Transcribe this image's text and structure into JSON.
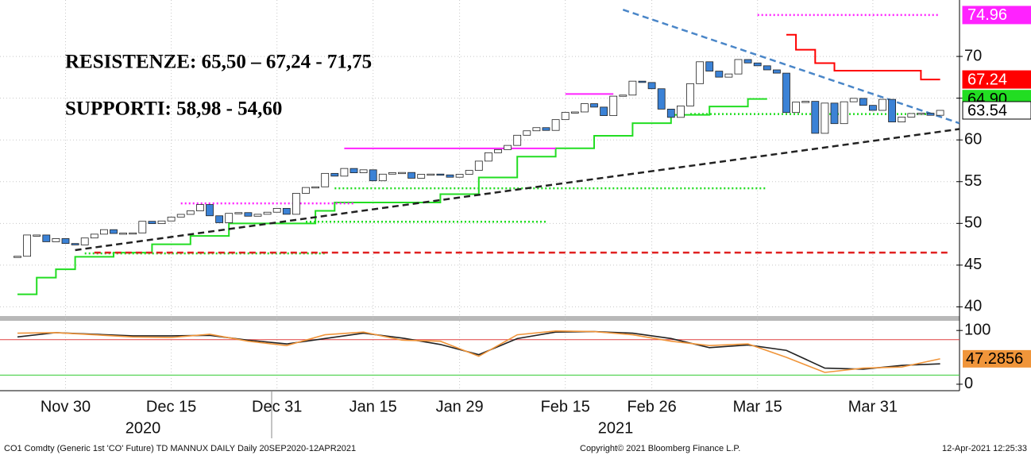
{
  "chart_data": [
    {
      "type": "candlestick",
      "annotations": [
        "RESISTENZE: 65,50 – 67,24 - 71,75",
        "SUPPORTI: 58,98 - 54,60"
      ],
      "footer": [
        "CO1 Comdty (Generic 1st 'CO' Future) TD MANNUX DAILY  Daily 20SEP2020-12APR2021",
        "Copyright© 2021 Bloomberg Finance L.P.",
        "12-Apr-2021 12:25:33"
      ],
      "year_labels": [
        "2020",
        "2021"
      ],
      "categories": [
        null,
        null,
        null,
        null,
        null,
        "Nov 30",
        null,
        null,
        null,
        null,
        null,
        null,
        null,
        null,
        null,
        null,
        "Dec 15",
        null,
        null,
        null,
        null,
        null,
        null,
        null,
        null,
        null,
        null,
        "Dec 31",
        null,
        null,
        null,
        null,
        null,
        null,
        null,
        null,
        null,
        "Jan 15",
        null,
        null,
        null,
        null,
        null,
        null,
        null,
        null,
        "Jan 29",
        null,
        null,
        null,
        null,
        null,
        null,
        null,
        null,
        null,
        null,
        "Feb 15",
        null,
        null,
        null,
        null,
        null,
        null,
        null,
        null,
        "Feb 26",
        null,
        null,
        null,
        null,
        null,
        null,
        null,
        null,
        null,
        null,
        "Mar 15",
        null,
        null,
        null,
        null,
        null,
        null,
        null,
        null,
        null,
        null,
        null,
        "Mar 31",
        null,
        null,
        null,
        null,
        null,
        null,
        null
      ],
      "close": [
        46.06,
        48.61,
        48.61,
        47.8,
        48.18,
        47.59,
        47.42,
        48.25,
        48.71,
        49.25,
        48.79,
        48.84,
        48.86,
        50.25,
        49.97,
        50.29,
        50.76,
        51.08,
        51.5,
        52.26,
        50.91,
        50.08,
        51.2,
        51.29,
        50.86,
        51.09,
        51.34,
        51.8,
        51.09,
        53.6,
        54.3,
        54.38,
        55.99,
        55.66,
        56.58,
        56.06,
        56.42,
        55.1,
        55.9,
        56.08,
        56.1,
        55.41,
        55.88,
        55.91,
        55.81,
        55.53,
        55.88,
        56.35,
        57.46,
        58.46,
        58.84,
        59.34,
        60.56,
        61.09,
        61.47,
        61.14,
        62.43,
        63.3,
        63.35,
        64.34,
        63.93,
        62.91,
        65.24,
        65.37,
        67.04,
        66.88,
        66.13,
        63.69,
        62.7,
        64.07,
        66.74,
        69.36,
        68.24,
        67.52,
        67.9,
        69.63,
        69.22,
        68.88,
        68.39,
        68,
        63.28,
        64.53,
        64.62,
        60.79,
        64.41,
        61.95,
        64.57,
        64.98,
        64.14,
        63.54,
        64.86,
        62.15,
        62.74,
        63.16,
        63.2,
        62.95,
        63.54
      ],
      "up_color": "#ffffff",
      "down_color": "#3b82d6",
      "ylim": [
        38.9,
        76
      ],
      "yticks": [
        40,
        45,
        50,
        55,
        60,
        65,
        70
      ],
      "grid": true,
      "overlays": [
        {
          "color": "#22dd22",
          "style": "solid",
          "step": true,
          "tag": true,
          "end_label": "64.90",
          "x": [
            0,
            2,
            4,
            6,
            10,
            14,
            18,
            22,
            28,
            31,
            33,
            44,
            48,
            52,
            56,
            60,
            64,
            68,
            72,
            76,
            78
          ],
          "values": [
            41.5,
            43.5,
            44.5,
            46,
            46.5,
            47.5,
            48.5,
            50,
            50,
            51.5,
            52.5,
            53.5,
            55.5,
            58,
            59,
            60.5,
            62,
            63,
            64,
            64.9,
            64.9
          ]
        },
        {
          "color": "#ff0000",
          "style": "solid",
          "step": true,
          "tag": true,
          "x": [
            80,
            81,
            83,
            85,
            94,
            96
          ],
          "values": [
            72.6,
            70.8,
            69.2,
            68.3,
            67.24,
            67.24
          ]
        },
        {
          "color": "#ff22ff",
          "style": "dotted",
          "tag": true,
          "x": [
            77,
            96
          ],
          "values": [
            74.96,
            74.96
          ]
        },
        {
          "color": "#ff22ff",
          "style": "solid",
          "x": [
            34,
            56
          ],
          "values": [
            58.98,
            58.98
          ]
        },
        {
          "color": "#ff22ff",
          "style": "solid",
          "x": [
            57,
            62
          ],
          "values": [
            65.5,
            65.5
          ]
        },
        {
          "color": "#ff22ff",
          "style": "dotted",
          "x": [
            17,
            35
          ],
          "values": [
            52.4,
            52.4
          ]
        },
        {
          "color": "#22dd22",
          "style": "dotted",
          "x": [
            70,
            96
          ],
          "values": [
            63.1,
            63.1
          ]
        },
        {
          "color": "#22dd22",
          "style": "dotted",
          "x": [
            33,
            78
          ],
          "values": [
            54.2,
            54.2
          ]
        },
        {
          "color": "#22dd22",
          "style": "dotted",
          "x": [
            30,
            55
          ],
          "values": [
            50.2,
            50.2
          ]
        },
        {
          "color": "#22dd22",
          "style": "dotted",
          "x": [
            7,
            32
          ],
          "values": [
            46.4,
            46.4
          ]
        },
        {
          "color": "#e02020",
          "style": "dashed",
          "x": [
            8,
            97
          ],
          "values": [
            46.5,
            46.5
          ]
        },
        {
          "color": "#222222",
          "style": "dashed",
          "x": [
            6,
            98
          ],
          "values": [
            46.8,
            61.3
          ]
        },
        {
          "color": "#4a86c8",
          "style": "dashed",
          "x": [
            63,
            98
          ],
          "values": [
            75.6,
            62
          ]
        }
      ]
    },
    {
      "type": "line",
      "ylim": [
        -12,
        118
      ],
      "yticks": [
        0,
        100
      ],
      "x": [
        0,
        4,
        8,
        12,
        16,
        20,
        24,
        28,
        32,
        36,
        40,
        44,
        48,
        52,
        56,
        60,
        64,
        68,
        72,
        76,
        80,
        84,
        88,
        92,
        96
      ],
      "hlines": [
        {
          "value": 83,
          "color": "#e04040"
        },
        {
          "value": 17,
          "color": "#33cc33"
        }
      ],
      "series": [
        {
          "color": "#222222",
          "values": [
            88,
            96,
            93,
            90,
            90,
            91,
            82,
            75,
            85,
            95,
            86,
            74,
            55,
            85,
            97,
            98,
            95,
            85,
            68,
            73,
            63,
            30,
            28,
            35,
            38
          ]
        },
        {
          "color": "#f0953a",
          "tag": true,
          "values": [
            95,
            96,
            92,
            88,
            87,
            93,
            80,
            72,
            92,
            97,
            82,
            80,
            52,
            92,
            99,
            98,
            92,
            80,
            72,
            75,
            50,
            22,
            30,
            32,
            47.2856
          ]
        }
      ]
    }
  ]
}
